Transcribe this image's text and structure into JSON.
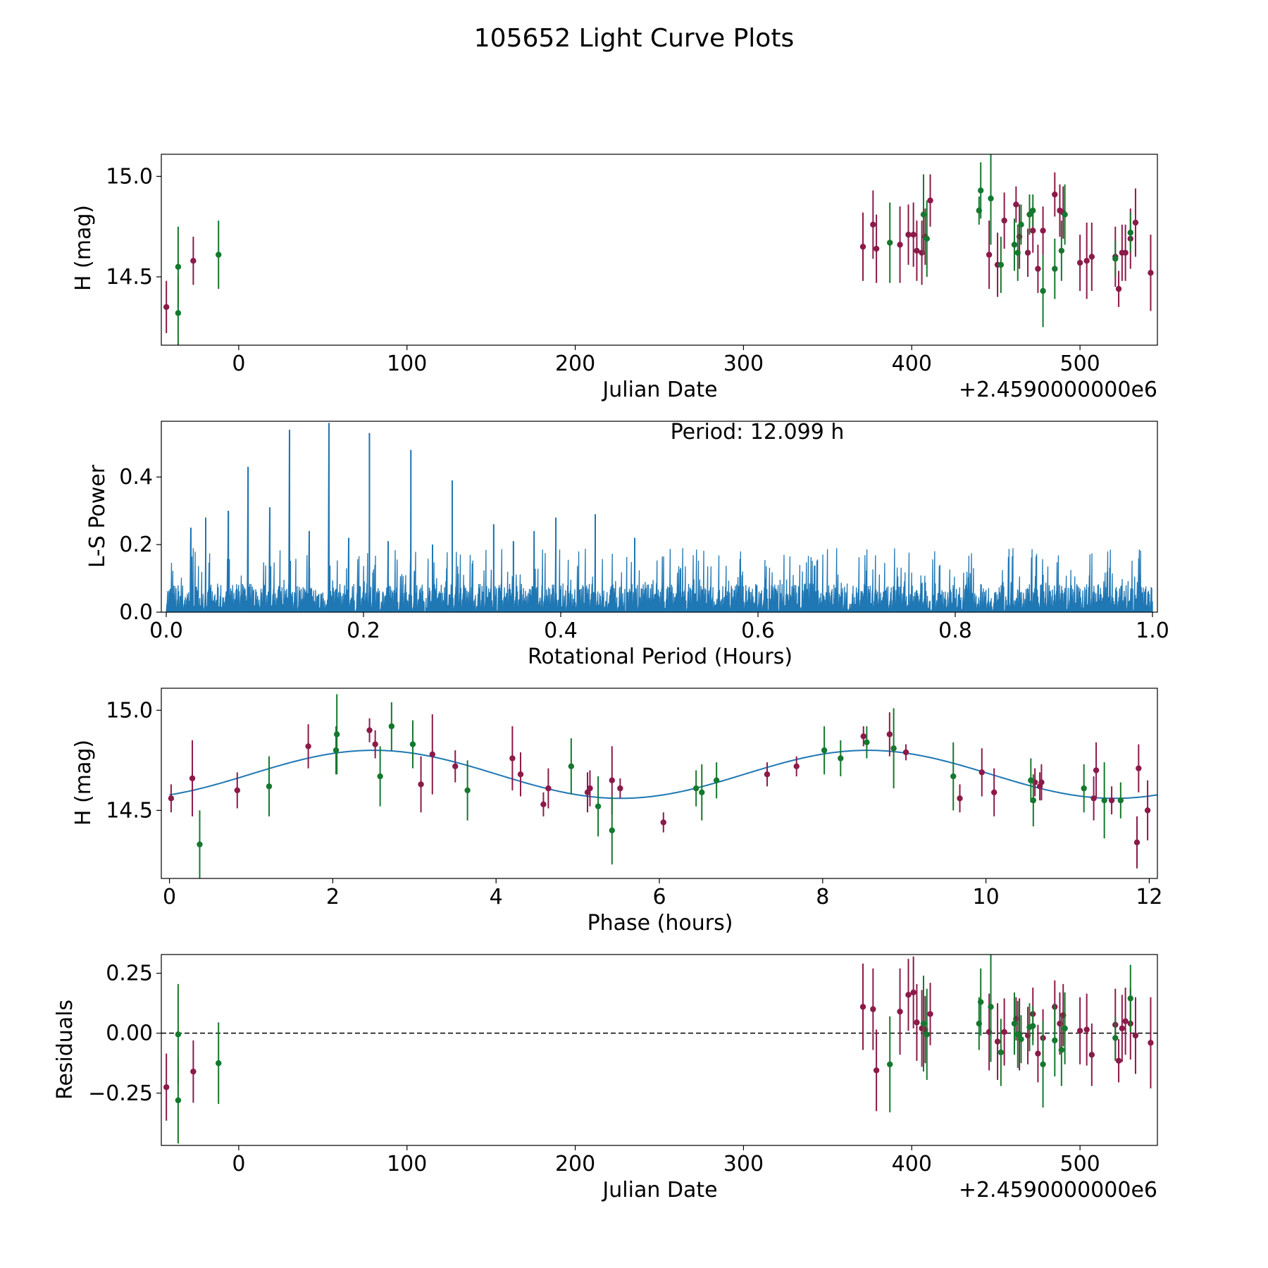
{
  "figure": {
    "title": "105652 Light Curve Plots"
  },
  "colors": {
    "red": "#8b1a4a",
    "green": "#15782e",
    "blue": "#1f77b4",
    "frame": "#000000"
  },
  "chart_data": [
    {
      "id": "lightcurve",
      "type": "scatter",
      "xlabel": "Julian Date",
      "ylabel": "H (mag)",
      "offset_label": "+2.4590000000e6",
      "xlim": [
        -46,
        546
      ],
      "ylim": [
        14.16,
        15.11
      ],
      "xticks": [
        0,
        100,
        200,
        300,
        400,
        500
      ],
      "xtick_labels": [
        "0",
        "100",
        "200",
        "300",
        "400",
        "500"
      ],
      "yticks": [
        14.5,
        15.0
      ],
      "ytick_labels": [
        "14.5",
        "15.0"
      ],
      "series": [
        {
          "name": "red-band",
          "color_key": "red",
          "points": [
            [
              -43,
              14.35,
              0.13
            ],
            [
              -27,
              14.58,
              0.12
            ],
            [
              371,
              14.65,
              0.17
            ],
            [
              377,
              14.76,
              0.17
            ],
            [
              379,
              14.64,
              0.17
            ],
            [
              393,
              14.66,
              0.19
            ],
            [
              398,
              14.71,
              0.15
            ],
            [
              401,
              14.71,
              0.16
            ],
            [
              403,
              14.63,
              0.15
            ],
            [
              406,
              14.62,
              0.16
            ],
            [
              408,
              14.7,
              0.14
            ],
            [
              411,
              14.88,
              0.13
            ],
            [
              446,
              14.61,
              0.17
            ],
            [
              451,
              14.56,
              0.16
            ],
            [
              455,
              14.78,
              0.14
            ],
            [
              462,
              14.86,
              0.09
            ],
            [
              464,
              14.7,
              0.16
            ],
            [
              469,
              14.62,
              0.12
            ],
            [
              472,
              14.73,
              0.11
            ],
            [
              475,
              14.54,
              0.12
            ],
            [
              478,
              14.73,
              0.12
            ],
            [
              485,
              14.91,
              0.11
            ],
            [
              488,
              14.83,
              0.13
            ],
            [
              490,
              14.82,
              0.13
            ],
            [
              500,
              14.57,
              0.14
            ],
            [
              504,
              14.58,
              0.19
            ],
            [
              507,
              14.6,
              0.17
            ],
            [
              521,
              14.6,
              0.15
            ],
            [
              523,
              14.44,
              0.09
            ],
            [
              525,
              14.62,
              0.14
            ],
            [
              527,
              14.62,
              0.14
            ],
            [
              530,
              14.69,
              0.15
            ],
            [
              533,
              14.77,
              0.17
            ],
            [
              542,
              14.52,
              0.19
            ]
          ]
        },
        {
          "name": "green-band",
          "color_key": "green",
          "points": [
            [
              -36,
              14.55,
              0.2
            ],
            [
              -36,
              14.32,
              0.18
            ],
            [
              -12,
              14.61,
              0.17
            ],
            [
              387,
              14.67,
              0.2
            ],
            [
              407,
              14.81,
              0.2
            ],
            [
              409,
              14.69,
              0.19
            ],
            [
              440,
              14.83,
              0.07
            ],
            [
              441,
              14.93,
              0.14
            ],
            [
              447,
              14.89,
              0.23
            ],
            [
              453,
              14.56,
              0.14
            ],
            [
              461,
              14.66,
              0.13
            ],
            [
              463,
              14.62,
              0.14
            ],
            [
              465,
              14.76,
              0.1
            ],
            [
              470,
              14.81,
              0.1
            ],
            [
              472,
              14.83,
              0.08
            ],
            [
              478,
              14.43,
              0.18
            ],
            [
              485,
              14.54,
              0.15
            ],
            [
              489,
              14.63,
              0.15
            ],
            [
              491,
              14.81,
              0.15
            ],
            [
              521,
              14.59,
              0.09
            ],
            [
              530,
              14.72,
              0.1
            ]
          ]
        }
      ]
    },
    {
      "id": "periodogram",
      "type": "line",
      "xlabel": "Rotational Period (Hours)",
      "ylabel": "L-S Power",
      "annotation": "Period: 12.099 h",
      "xlim": [
        -0.005,
        1.005
      ],
      "ylim": [
        0,
        0.565
      ],
      "xticks": [
        0.0,
        0.2,
        0.4,
        0.6,
        0.8,
        1.0
      ],
      "xtick_labels": [
        "0.0",
        "0.2",
        "0.4",
        "0.6",
        "0.8",
        "1.0"
      ],
      "yticks": [
        0.0,
        0.2,
        0.4
      ],
      "ytick_labels": [
        "0.0",
        "0.2",
        "0.4"
      ],
      "baseline_max": 0.085,
      "noise_peak_max": 0.19,
      "peaks": [
        [
          0.025,
          0.25
        ],
        [
          0.04,
          0.28
        ],
        [
          0.063,
          0.3
        ],
        [
          0.083,
          0.43
        ],
        [
          0.105,
          0.31
        ],
        [
          0.125,
          0.54
        ],
        [
          0.145,
          0.24
        ],
        [
          0.165,
          0.56
        ],
        [
          0.185,
          0.22
        ],
        [
          0.206,
          0.53
        ],
        [
          0.225,
          0.21
        ],
        [
          0.248,
          0.48
        ],
        [
          0.27,
          0.2
        ],
        [
          0.29,
          0.39
        ],
        [
          0.332,
          0.26
        ],
        [
          0.352,
          0.21
        ],
        [
          0.373,
          0.24
        ],
        [
          0.395,
          0.28
        ],
        [
          0.435,
          0.29
        ],
        [
          0.475,
          0.22
        ]
      ]
    },
    {
      "id": "phased",
      "type": "scatter",
      "xlabel": "Phase (hours)",
      "ylabel": "H (mag)",
      "xlim": [
        -0.1,
        12.1
      ],
      "ylim": [
        14.16,
        15.11
      ],
      "xticks": [
        0,
        2,
        4,
        6,
        8,
        10,
        12
      ],
      "xtick_labels": [
        "0",
        "2",
        "4",
        "6",
        "8",
        "10",
        "12"
      ],
      "yticks": [
        14.5,
        15.0
      ],
      "ytick_labels": [
        "14.5",
        "15.0"
      ],
      "model": {
        "mean": 14.68,
        "amplitude": 0.12,
        "period": 6.05,
        "peak_phase": 2.5
      },
      "series": [
        {
          "name": "red-band",
          "color_key": "red",
          "points": [
            [
              0.02,
              14.56,
              0.07
            ],
            [
              0.28,
              14.66,
              0.19
            ],
            [
              0.83,
              14.6,
              0.09
            ],
            [
              1.7,
              14.82,
              0.11
            ],
            [
              2.45,
              14.9,
              0.06
            ],
            [
              2.52,
              14.83,
              0.07
            ],
            [
              3.08,
              14.63,
              0.14
            ],
            [
              3.22,
              14.78,
              0.2
            ],
            [
              3.5,
              14.72,
              0.08
            ],
            [
              4.2,
              14.76,
              0.16
            ],
            [
              4.3,
              14.68,
              0.11
            ],
            [
              4.58,
              14.53,
              0.06
            ],
            [
              4.64,
              14.61,
              0.1
            ],
            [
              5.12,
              14.59,
              0.1
            ],
            [
              5.15,
              14.61,
              0.09
            ],
            [
              5.42,
              14.65,
              0.17
            ],
            [
              5.52,
              14.61,
              0.05
            ],
            [
              6.05,
              14.44,
              0.05
            ],
            [
              7.32,
              14.68,
              0.06
            ],
            [
              7.68,
              14.72,
              0.05
            ],
            [
              8.5,
              14.87,
              0.05
            ],
            [
              8.82,
              14.88,
              0.11
            ],
            [
              9.02,
              14.79,
              0.04
            ],
            [
              9.68,
              14.56,
              0.07
            ],
            [
              9.95,
              14.69,
              0.12
            ],
            [
              10.1,
              14.59,
              0.12
            ],
            [
              10.6,
              14.64,
              0.07
            ],
            [
              10.66,
              14.62,
              0.07
            ],
            [
              10.68,
              14.64,
              0.09
            ],
            [
              11.32,
              14.56,
              0.11
            ],
            [
              11.35,
              14.7,
              0.14
            ],
            [
              11.54,
              14.55,
              0.07
            ],
            [
              11.85,
              14.34,
              0.13
            ],
            [
              11.87,
              14.71,
              0.12
            ],
            [
              11.98,
              14.5,
              0.15
            ]
          ]
        },
        {
          "name": "green-band",
          "color_key": "green",
          "points": [
            [
              0.37,
              14.33,
              0.17
            ],
            [
              1.22,
              14.62,
              0.15
            ],
            [
              2.04,
              14.8,
              0.12
            ],
            [
              2.05,
              14.88,
              0.2
            ],
            [
              2.58,
              14.67,
              0.15
            ],
            [
              2.72,
              14.92,
              0.12
            ],
            [
              2.98,
              14.83,
              0.12
            ],
            [
              3.65,
              14.6,
              0.15
            ],
            [
              4.92,
              14.72,
              0.14
            ],
            [
              5.25,
              14.52,
              0.15
            ],
            [
              5.42,
              14.4,
              0.17
            ],
            [
              6.45,
              14.61,
              0.09
            ],
            [
              6.52,
              14.59,
              0.14
            ],
            [
              6.7,
              14.65,
              0.09
            ],
            [
              8.02,
              14.8,
              0.12
            ],
            [
              8.22,
              14.76,
              0.09
            ],
            [
              8.54,
              14.84,
              0.08
            ],
            [
              8.87,
              14.81,
              0.2
            ],
            [
              9.6,
              14.67,
              0.17
            ],
            [
              10.55,
              14.65,
              0.11
            ],
            [
              10.58,
              14.55,
              0.13
            ],
            [
              11.2,
              14.61,
              0.12
            ],
            [
              11.45,
              14.55,
              0.19
            ],
            [
              11.65,
              14.55,
              0.09
            ]
          ]
        }
      ]
    },
    {
      "id": "residuals",
      "type": "scatter",
      "xlabel": "Julian Date",
      "ylabel": "Residuals",
      "offset_label": "+2.4590000000e6",
      "xlim": [
        -46,
        546
      ],
      "ylim": [
        -0.468,
        0.328
      ],
      "xticks": [
        0,
        100,
        200,
        300,
        400,
        500
      ],
      "xtick_labels": [
        "0",
        "100",
        "200",
        "300",
        "400",
        "500"
      ],
      "yticks": [
        0.25,
        0.0,
        -0.25
      ],
      "ytick_labels": [
        "0.25",
        "0.00",
        "−0.25"
      ],
      "zero_line": 0,
      "series": [
        {
          "name": "red-band",
          "color_key": "red",
          "points": [
            [
              -43,
              -0.225,
              0.14
            ],
            [
              -27,
              -0.16,
              0.13
            ],
            [
              371,
              0.11,
              0.18
            ],
            [
              377,
              0.1,
              0.17
            ],
            [
              379,
              -0.155,
              0.17
            ],
            [
              393,
              0.09,
              0.18
            ],
            [
              398,
              0.16,
              0.15
            ],
            [
              401,
              0.17,
              0.15
            ],
            [
              403,
              0.045,
              0.16
            ],
            [
              406,
              0.02,
              0.16
            ],
            [
              408,
              0.015,
              0.14
            ],
            [
              411,
              0.08,
              0.13
            ],
            [
              446,
              0.005,
              0.16
            ],
            [
              451,
              -0.035,
              0.16
            ],
            [
              455,
              0.005,
              0.14
            ],
            [
              462,
              0.06,
              0.09
            ],
            [
              464,
              -0.005,
              0.15
            ],
            [
              469,
              -0.01,
              0.12
            ],
            [
              472,
              0.08,
              0.11
            ],
            [
              475,
              -0.085,
              0.12
            ],
            [
              478,
              -0.02,
              0.12
            ],
            [
              485,
              0.11,
              0.11
            ],
            [
              488,
              0.04,
              0.13
            ],
            [
              490,
              0.075,
              0.13
            ],
            [
              500,
              0.01,
              0.14
            ],
            [
              504,
              0.015,
              0.15
            ],
            [
              507,
              -0.09,
              0.13
            ],
            [
              521,
              0.035,
              0.15
            ],
            [
              523,
              -0.115,
              0.09
            ],
            [
              525,
              0.02,
              0.14
            ],
            [
              527,
              0.05,
              0.14
            ],
            [
              530,
              0.04,
              0.15
            ],
            [
              533,
              -0.01,
              0.16
            ],
            [
              542,
              -0.04,
              0.19
            ]
          ]
        },
        {
          "name": "green-band",
          "color_key": "green",
          "points": [
            [
              -36,
              -0.005,
              0.21
            ],
            [
              -36,
              -0.28,
              0.18
            ],
            [
              -12,
              -0.125,
              0.17
            ],
            [
              387,
              -0.13,
              0.2
            ],
            [
              407,
              0.04,
              0.2
            ],
            [
              409,
              -0.005,
              0.19
            ],
            [
              440,
              0.04,
              0.11
            ],
            [
              441,
              0.13,
              0.14
            ],
            [
              447,
              0.11,
              0.23
            ],
            [
              453,
              -0.08,
              0.14
            ],
            [
              461,
              0.04,
              0.13
            ],
            [
              463,
              -0.005,
              0.14
            ],
            [
              465,
              -0.025,
              0.1
            ],
            [
              470,
              0.025,
              0.1
            ],
            [
              472,
              0.03,
              0.08
            ],
            [
              478,
              -0.13,
              0.18
            ],
            [
              485,
              -0.03,
              0.15
            ],
            [
              489,
              -0.07,
              0.15
            ],
            [
              491,
              0.02,
              0.15
            ],
            [
              521,
              -0.02,
              0.09
            ],
            [
              530,
              0.145,
              0.14
            ]
          ]
        }
      ]
    }
  ]
}
